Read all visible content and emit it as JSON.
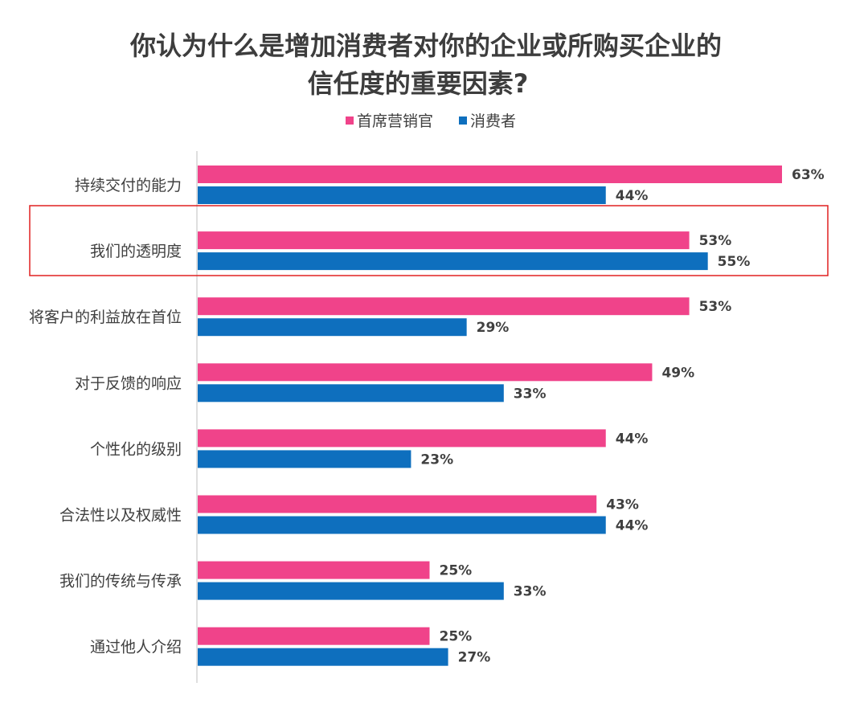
{
  "chart_data": {
    "type": "bar",
    "orientation": "horizontal",
    "title": [
      "你认为什么是增加消费者对你的企业或所购买企业的",
      "信任度的重要因素?"
    ],
    "categories": [
      "持续交付的能力",
      "我们的透明度",
      "将客户的利益放在首位",
      "对于反馈的响应",
      "个性化的级别",
      "合法性以及权威性",
      "我们的传统与传承",
      "通过他人介绍"
    ],
    "series": [
      {
        "name": "首席营销官",
        "color": "#f0438a",
        "values": [
          63,
          53,
          53,
          49,
          44,
          43,
          25,
          25
        ],
        "labels": [
          "63%",
          "53%",
          "53%",
          "49%",
          "44%",
          "43%",
          "25%",
          "25%"
        ]
      },
      {
        "name": "消费者",
        "color": "#0e6fbe",
        "values": [
          44,
          55,
          29,
          33,
          23,
          44,
          33,
          27
        ],
        "labels": [
          "44%",
          "55%",
          "29%",
          "33%",
          "23%",
          "44%",
          "33%",
          "27%"
        ]
      }
    ],
    "xlim": [
      0,
      70
    ],
    "legend_position": "top",
    "grid": false,
    "highlighted_category": "我们的透明度",
    "highlight_color": "#e02020"
  }
}
